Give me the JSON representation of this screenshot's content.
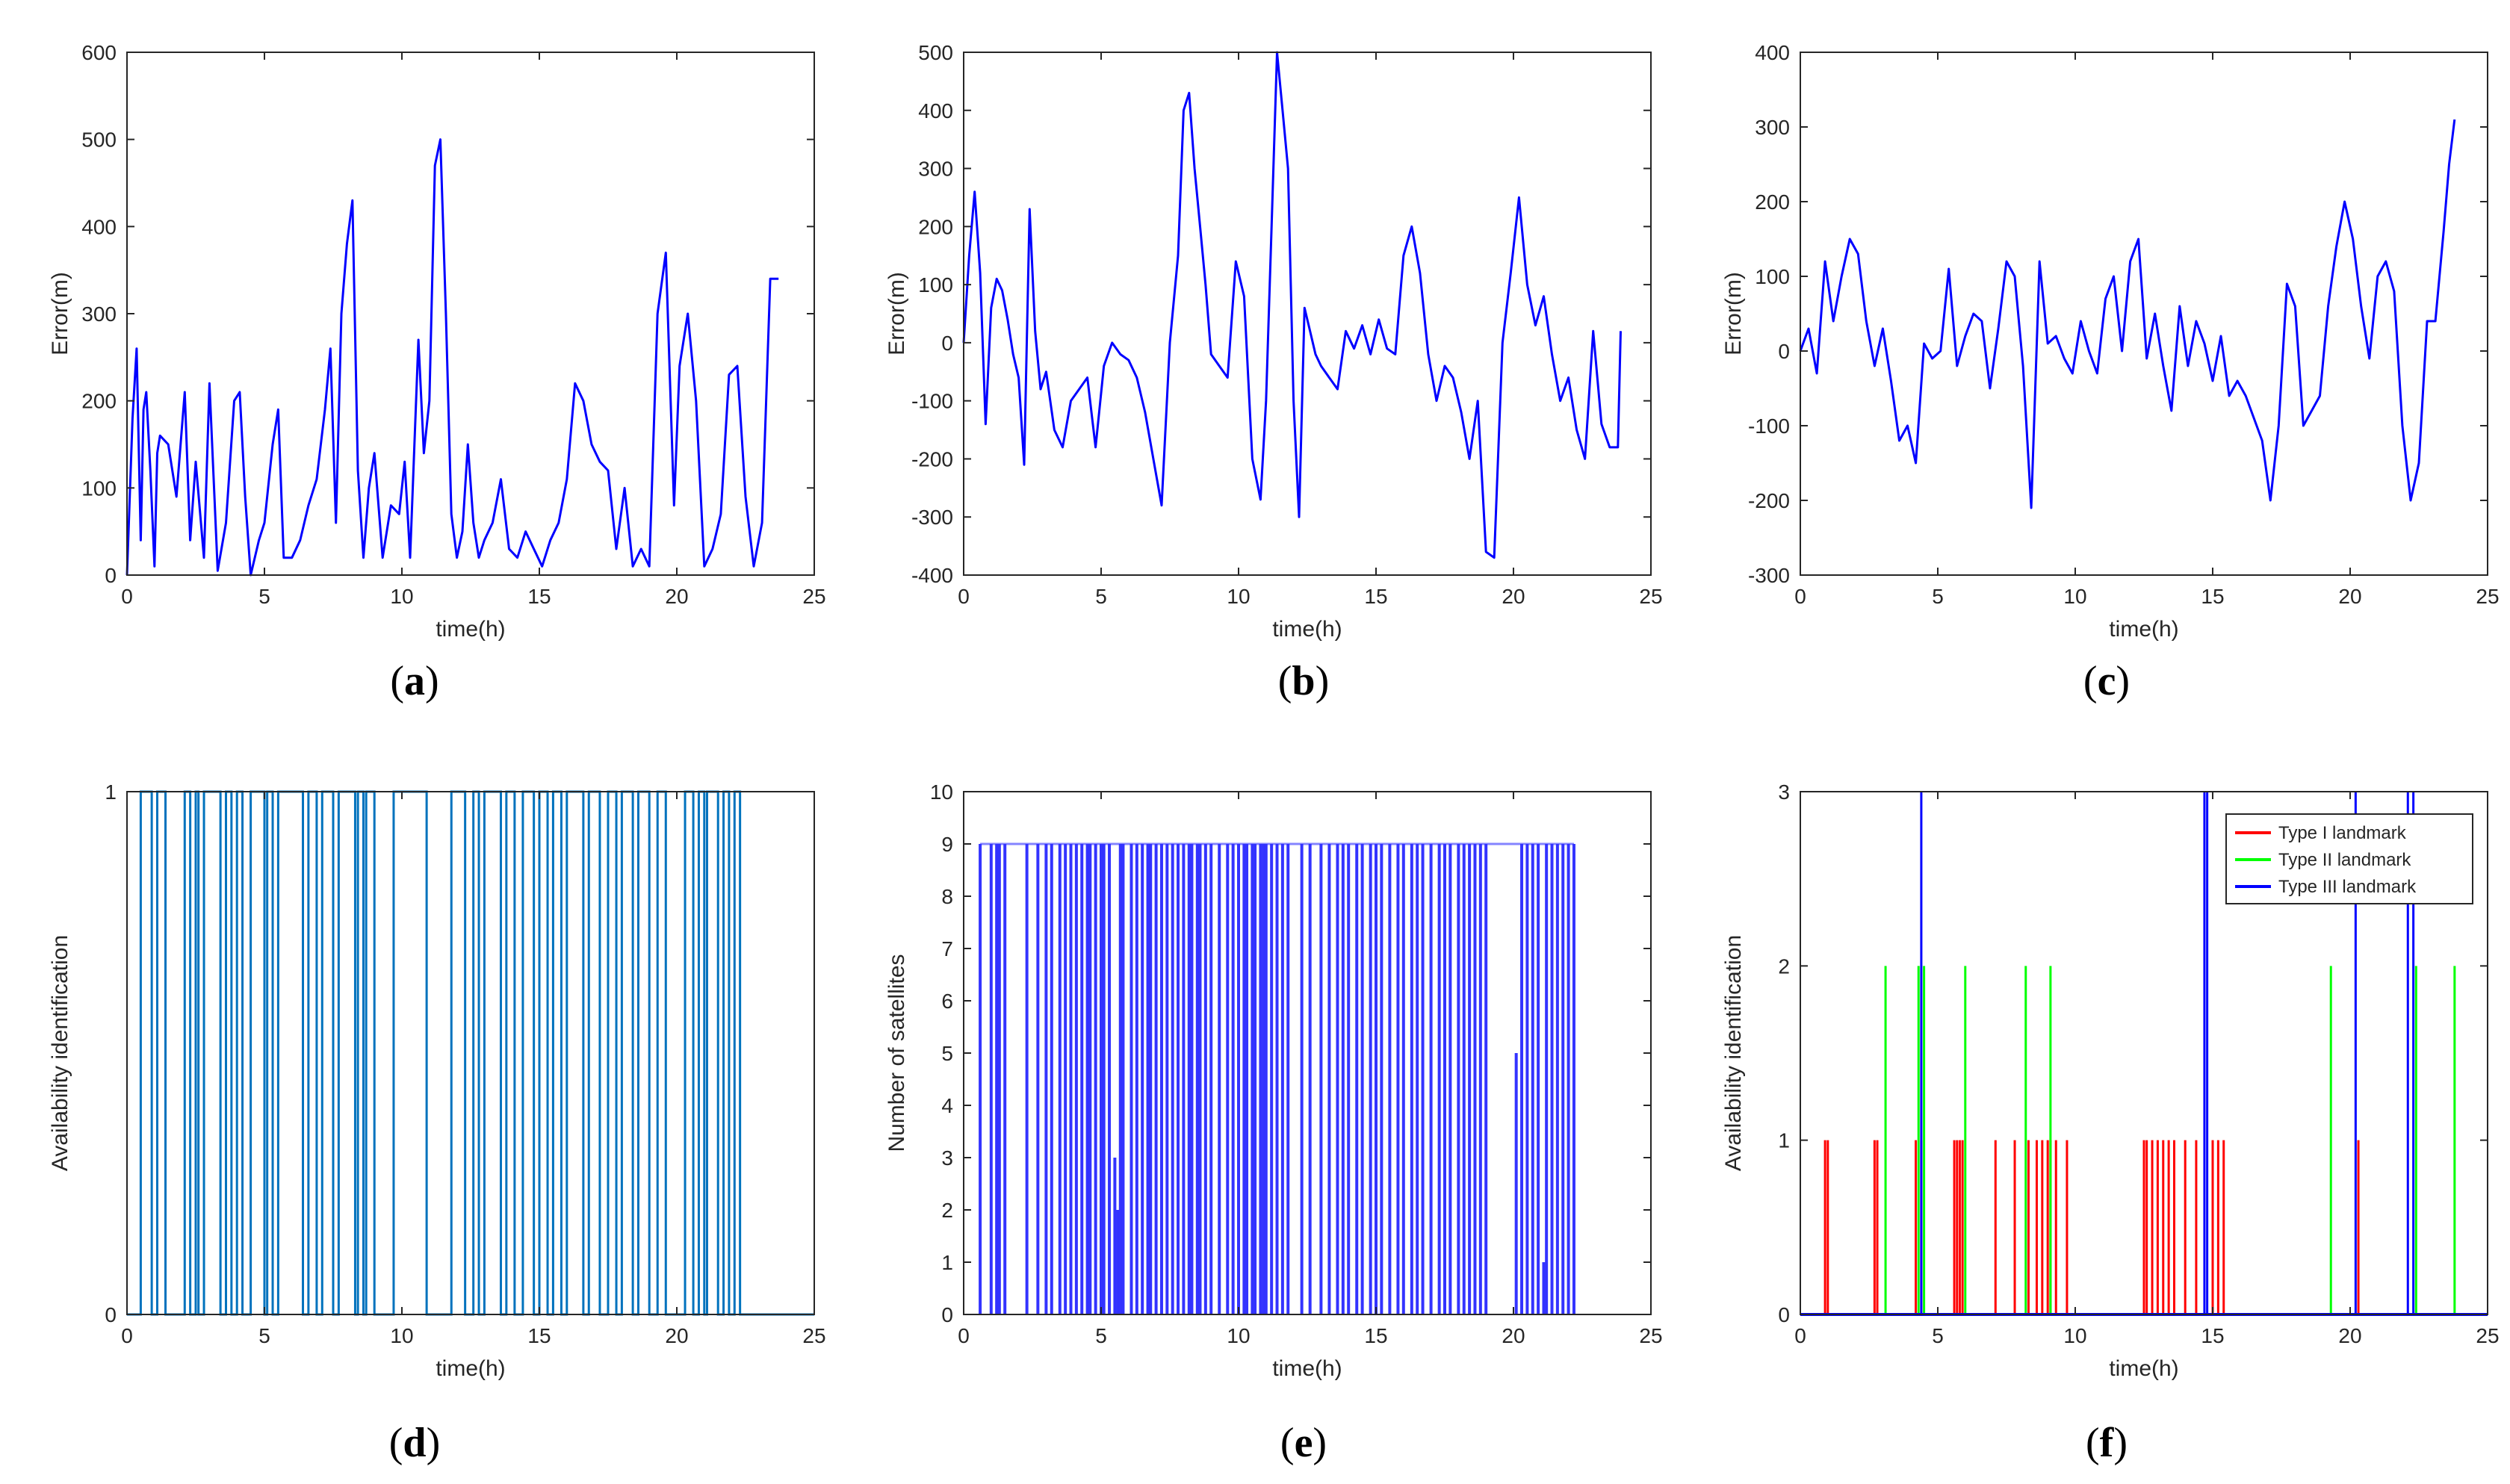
{
  "colors": {
    "blue": "#0000ff",
    "lightblue": "#0072bd",
    "red": "#ff0000",
    "green": "#00ff00",
    "satblue": "#3333ff"
  },
  "chart_data": [
    {
      "id": "a",
      "type": "line",
      "caption_letter": "a",
      "xlabel": "time(h)",
      "ylabel": "Error(m)",
      "xlim": [
        0,
        25
      ],
      "ylim": [
        0,
        600
      ],
      "xticks": [
        0,
        5,
        10,
        15,
        20,
        25
      ],
      "yticks": [
        0,
        100,
        200,
        300,
        400,
        500,
        600
      ],
      "series": [
        {
          "name": "error",
          "color": "#0000ff",
          "x": [
            0,
            0.2,
            0.35,
            0.5,
            0.6,
            0.7,
            0.85,
            1.0,
            1.1,
            1.2,
            1.5,
            1.8,
            2.1,
            2.3,
            2.5,
            2.8,
            3.0,
            3.3,
            3.6,
            3.9,
            4.1,
            4.3,
            4.5,
            4.8,
            5.0,
            5.3,
            5.5,
            5.7,
            6.0,
            6.3,
            6.6,
            6.9,
            7.2,
            7.4,
            7.6,
            7.8,
            8.0,
            8.2,
            8.4,
            8.6,
            8.8,
            9.0,
            9.3,
            9.6,
            9.9,
            10.1,
            10.3,
            10.6,
            10.8,
            11.0,
            11.2,
            11.4,
            11.6,
            11.8,
            12.0,
            12.2,
            12.4,
            12.6,
            12.8,
            13.0,
            13.3,
            13.6,
            13.9,
            14.2,
            14.5,
            14.8,
            15.1,
            15.4,
            15.7,
            16.0,
            16.3,
            16.6,
            16.9,
            17.2,
            17.5,
            17.8,
            18.1,
            18.4,
            18.7,
            19.0,
            19.3,
            19.6,
            19.9,
            20.1,
            20.4,
            20.7,
            21.0,
            21.3,
            21.6,
            21.9,
            22.2,
            22.5,
            22.8,
            23.1,
            23.4,
            23.7
          ],
          "y": [
            0,
            180,
            260,
            40,
            190,
            210,
            120,
            10,
            140,
            160,
            150,
            90,
            210,
            40,
            130,
            20,
            220,
            5,
            60,
            200,
            210,
            90,
            0,
            40,
            60,
            150,
            190,
            20,
            20,
            40,
            80,
            110,
            190,
            260,
            60,
            300,
            380,
            430,
            120,
            20,
            100,
            140,
            20,
            80,
            70,
            130,
            20,
            270,
            140,
            200,
            470,
            500,
            300,
            70,
            20,
            50,
            150,
            60,
            20,
            40,
            60,
            110,
            30,
            20,
            50,
            30,
            10,
            40,
            60,
            110,
            220,
            200,
            150,
            130,
            120,
            30,
            100,
            10,
            30,
            10,
            300,
            370,
            80,
            240,
            300,
            200,
            10,
            30,
            70,
            230,
            240,
            90,
            10,
            60,
            340,
            340
          ]
        }
      ]
    },
    {
      "id": "b",
      "type": "line",
      "caption_letter": "b",
      "xlabel": "time(h)",
      "ylabel": "Error(m)",
      "xlim": [
        0,
        25
      ],
      "ylim": [
        -400,
        500
      ],
      "xticks": [
        0,
        5,
        10,
        15,
        20,
        25
      ],
      "yticks": [
        -400,
        -300,
        -200,
        -100,
        0,
        100,
        200,
        300,
        400,
        500
      ],
      "series": [
        {
          "name": "error",
          "color": "#0000ff",
          "x": [
            0,
            0.2,
            0.4,
            0.6,
            0.8,
            1.0,
            1.2,
            1.4,
            1.6,
            1.8,
            2.0,
            2.2,
            2.4,
            2.6,
            2.8,
            3.0,
            3.3,
            3.6,
            3.9,
            4.2,
            4.5,
            4.8,
            5.1,
            5.4,
            5.7,
            6.0,
            6.3,
            6.6,
            6.9,
            7.2,
            7.5,
            7.8,
            8.0,
            8.2,
            8.4,
            8.6,
            8.8,
            9.0,
            9.3,
            9.6,
            9.9,
            10.2,
            10.5,
            10.8,
            11.0,
            11.2,
            11.4,
            11.6,
            11.8,
            12.0,
            12.2,
            12.4,
            12.6,
            12.8,
            13.0,
            13.3,
            13.6,
            13.9,
            14.2,
            14.5,
            14.8,
            15.1,
            15.4,
            15.7,
            16.0,
            16.3,
            16.6,
            16.9,
            17.2,
            17.5,
            17.8,
            18.1,
            18.4,
            18.7,
            19.0,
            19.3,
            19.6,
            19.9,
            20.2,
            20.5,
            20.8,
            21.1,
            21.4,
            21.7,
            22.0,
            22.3,
            22.6,
            22.9,
            23.2,
            23.5,
            23.8,
            23.9
          ],
          "y": [
            0,
            150,
            260,
            120,
            -140,
            60,
            110,
            90,
            40,
            -20,
            -60,
            -210,
            230,
            20,
            -80,
            -50,
            -150,
            -180,
            -100,
            -80,
            -60,
            -180,
            -40,
            0,
            -20,
            -30,
            -60,
            -120,
            -200,
            -280,
            0,
            150,
            400,
            430,
            300,
            200,
            100,
            -20,
            -40,
            -60,
            140,
            80,
            -200,
            -270,
            -100,
            200,
            500,
            400,
            300,
            -100,
            -300,
            60,
            20,
            -20,
            -40,
            -60,
            -80,
            20,
            -10,
            30,
            -20,
            40,
            -10,
            -20,
            150,
            200,
            120,
            -20,
            -100,
            -40,
            -60,
            -120,
            -200,
            -100,
            -360,
            -370,
            0,
            120,
            250,
            100,
            30,
            80,
            -20,
            -100,
            -60,
            -150,
            -200,
            20,
            -140,
            -180,
            -180,
            20
          ]
        }
      ]
    },
    {
      "id": "c",
      "type": "line",
      "caption_letter": "c",
      "xlabel": "time(h)",
      "ylabel": "Error(m)",
      "xlim": [
        0,
        25
      ],
      "ylim": [
        -300,
        400
      ],
      "xticks": [
        0,
        5,
        10,
        15,
        20,
        25
      ],
      "yticks": [
        -300,
        -200,
        -100,
        0,
        100,
        200,
        300,
        400
      ],
      "series": [
        {
          "name": "error",
          "color": "#0000ff",
          "x": [
            0,
            0.3,
            0.6,
            0.9,
            1.2,
            1.5,
            1.8,
            2.1,
            2.4,
            2.7,
            3.0,
            3.3,
            3.6,
            3.9,
            4.2,
            4.5,
            4.8,
            5.1,
            5.4,
            5.7,
            6.0,
            6.3,
            6.6,
            6.9,
            7.2,
            7.5,
            7.8,
            8.1,
            8.4,
            8.7,
            9.0,
            9.3,
            9.6,
            9.9,
            10.2,
            10.5,
            10.8,
            11.1,
            11.4,
            11.7,
            12.0,
            12.3,
            12.6,
            12.9,
            13.2,
            13.5,
            13.8,
            14.1,
            14.4,
            14.7,
            15.0,
            15.3,
            15.6,
            15.9,
            16.2,
            16.5,
            16.8,
            17.1,
            17.4,
            17.7,
            18.0,
            18.3,
            18.6,
            18.9,
            19.2,
            19.5,
            19.8,
            20.1,
            20.4,
            20.7,
            21.0,
            21.3,
            21.6,
            21.9,
            22.2,
            22.5,
            22.8,
            23.1,
            23.4,
            23.6,
            23.8
          ],
          "y": [
            0,
            30,
            -30,
            120,
            40,
            100,
            150,
            130,
            40,
            -20,
            30,
            -40,
            -120,
            -100,
            -150,
            10,
            -10,
            0,
            110,
            -20,
            20,
            50,
            40,
            -50,
            30,
            120,
            100,
            -20,
            -210,
            120,
            10,
            20,
            -10,
            -30,
            40,
            0,
            -30,
            70,
            100,
            0,
            120,
            150,
            -10,
            50,
            -20,
            -80,
            60,
            -20,
            40,
            10,
            -40,
            20,
            -60,
            -40,
            -60,
            -90,
            -120,
            -200,
            -100,
            90,
            60,
            -100,
            -80,
            -60,
            60,
            140,
            200,
            150,
            60,
            -10,
            100,
            120,
            80,
            -100,
            -200,
            -150,
            40,
            40,
            160,
            250,
            310
          ]
        }
      ]
    },
    {
      "id": "d",
      "type": "step",
      "caption_letter": "d",
      "xlabel": "time(h)",
      "ylabel": "Availability identification",
      "xlim": [
        0,
        25
      ],
      "ylim": [
        0,
        1
      ],
      "xticks": [
        0,
        5,
        10,
        15,
        20,
        25
      ],
      "yticks": [
        0,
        1
      ],
      "series": [
        {
          "name": "availability",
          "color": "#0072bd",
          "intervals": [
            [
              0.5,
              0.9
            ],
            [
              1.1,
              1.4
            ],
            [
              2.1,
              2.3
            ],
            [
              2.5,
              2.6
            ],
            [
              2.8,
              3.4
            ],
            [
              3.6,
              3.8
            ],
            [
              4.0,
              4.2
            ],
            [
              4.5,
              5.0
            ],
            [
              5.1,
              5.3
            ],
            [
              5.5,
              6.4
            ],
            [
              6.6,
              6.9
            ],
            [
              7.1,
              7.5
            ],
            [
              7.7,
              8.3
            ],
            [
              8.4,
              8.6
            ],
            [
              8.7,
              9.0
            ],
            [
              9.7,
              10.9
            ],
            [
              11.8,
              12.3
            ],
            [
              12.6,
              12.8
            ],
            [
              13.0,
              13.6
            ],
            [
              13.8,
              14.1
            ],
            [
              14.4,
              14.8
            ],
            [
              15.0,
              15.3
            ],
            [
              15.5,
              15.8
            ],
            [
              16.0,
              16.6
            ],
            [
              16.8,
              17.2
            ],
            [
              17.5,
              17.8
            ],
            [
              18.0,
              18.4
            ],
            [
              18.6,
              19.0
            ],
            [
              19.3,
              19.6
            ],
            [
              20.3,
              20.6
            ],
            [
              20.8,
              21.0
            ],
            [
              21.1,
              21.5
            ],
            [
              21.7,
              21.9
            ],
            [
              22.1,
              22.3
            ]
          ]
        }
      ]
    },
    {
      "id": "e",
      "type": "stem",
      "caption_letter": "e",
      "xlabel": "time(h)",
      "ylabel": "Number of satellites",
      "xlim": [
        0,
        25
      ],
      "ylim": [
        0,
        10
      ],
      "xticks": [
        0,
        5,
        10,
        15,
        20,
        25
      ],
      "yticks": [
        0,
        1,
        2,
        3,
        4,
        5,
        6,
        7,
        8,
        9,
        10
      ],
      "series": [
        {
          "name": "satellites",
          "color": "#3333ff",
          "x": [
            0.6,
            1.0,
            1.2,
            1.3,
            1.5,
            2.3,
            2.7,
            3.0,
            3.2,
            3.5,
            3.7,
            3.9,
            4.1,
            4.3,
            4.5,
            4.6,
            4.8,
            5.0,
            5.1,
            5.3,
            5.5,
            5.6,
            5.7,
            5.8,
            6.1,
            6.3,
            6.5,
            6.7,
            6.8,
            7.0,
            7.2,
            7.4,
            7.6,
            7.8,
            8.0,
            8.2,
            8.3,
            8.5,
            8.6,
            8.8,
            9.0,
            9.3,
            9.6,
            9.8,
            10.0,
            10.2,
            10.3,
            10.5,
            10.6,
            10.8,
            10.9,
            11.0,
            11.2,
            11.4,
            11.6,
            11.8,
            12.3,
            12.6,
            13.0,
            13.3,
            13.6,
            13.8,
            14.0,
            14.3,
            14.5,
            14.8,
            15.0,
            15.2,
            15.5,
            15.8,
            16.0,
            16.3,
            16.5,
            16.7,
            17.0,
            17.3,
            17.5,
            17.7,
            18.0,
            18.2,
            18.4,
            18.6,
            18.8,
            19.0,
            20.1,
            20.3,
            20.5,
            20.7,
            20.9,
            21.1,
            21.2,
            21.4,
            21.6,
            21.8,
            22.0,
            22.2
          ],
          "y": [
            9,
            9,
            9,
            9,
            9,
            9,
            9,
            9,
            9,
            9,
            9,
            9,
            9,
            9,
            9,
            9,
            9,
            9,
            9,
            9,
            3,
            2,
            9,
            9,
            9,
            9,
            9,
            9,
            9,
            9,
            9,
            9,
            9,
            9,
            9,
            9,
            9,
            9,
            9,
            9,
            9,
            9,
            9,
            9,
            9,
            9,
            9,
            9,
            9,
            9,
            9,
            9,
            9,
            9,
            9,
            9,
            9,
            9,
            9,
            9,
            9,
            9,
            9,
            9,
            9,
            9,
            9,
            9,
            9,
            9,
            9,
            9,
            9,
            9,
            9,
            9,
            9,
            9,
            9,
            9,
            9,
            9,
            9,
            9,
            5,
            9,
            9,
            9,
            9,
            1,
            9,
            9,
            9,
            9,
            9,
            9
          ]
        }
      ]
    },
    {
      "id": "f",
      "type": "stem",
      "caption_letter": "f",
      "xlabel": "time(h)",
      "ylabel": "Availability identification",
      "xlim": [
        0,
        25
      ],
      "ylim": [
        0,
        3
      ],
      "xticks": [
        0,
        5,
        10,
        15,
        20,
        25
      ],
      "yticks": [
        0,
        1,
        2,
        3
      ],
      "legend": {
        "placement": "top-right"
      },
      "series": [
        {
          "name": "Type I landmark",
          "color": "#ff0000",
          "value": 1,
          "x": [
            0.9,
            1.0,
            2.7,
            2.8,
            4.2,
            4.4,
            5.6,
            5.7,
            5.8,
            5.9,
            7.1,
            7.8,
            8.3,
            8.6,
            8.8,
            9.0,
            9.1,
            9.3,
            9.7,
            12.5,
            12.6,
            12.8,
            13.0,
            13.2,
            13.4,
            13.6,
            14.0,
            14.4,
            15.0,
            15.2,
            15.4,
            20.3
          ]
        },
        {
          "name": "Type II landmark",
          "color": "#00ff00",
          "value": 2,
          "x": [
            3.1,
            4.3,
            4.5,
            6.0,
            8.2,
            9.1,
            19.3,
            22.4,
            23.8
          ]
        },
        {
          "name": "Type III landmark",
          "color": "#0000ff",
          "value": 3,
          "x": [
            4.4,
            14.7,
            14.8,
            20.2,
            22.1,
            22.3
          ]
        }
      ]
    }
  ]
}
